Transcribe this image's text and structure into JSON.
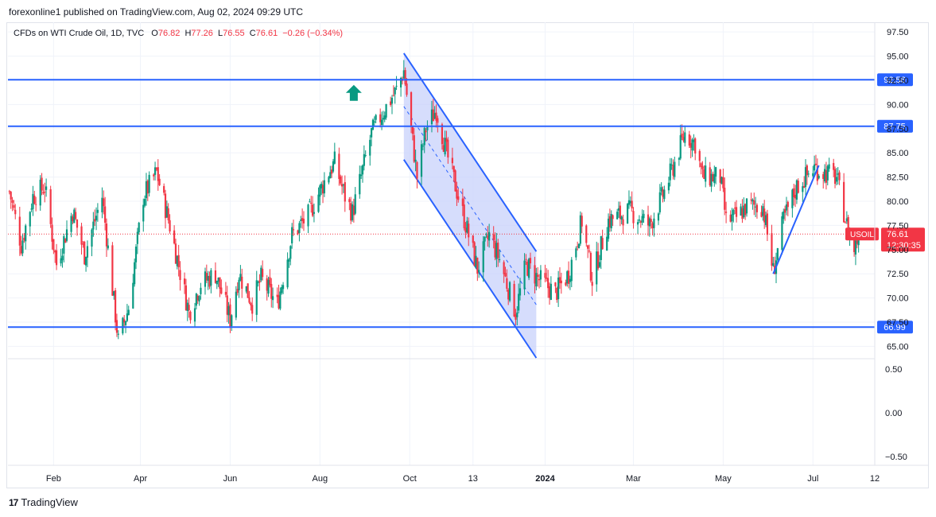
{
  "header": {
    "published_text": "forexonline1 published on TradingView.com, Aug 02, 2024 09:29 UTC"
  },
  "legend": {
    "symbol": "CFDs on WTI Crude Oil, 1D, TVC",
    "open_label": "O",
    "open": "76.82",
    "high_label": "H",
    "high": "77.26",
    "low_label": "L",
    "low": "76.55",
    "close_label": "C",
    "close": "76.61",
    "change": "−0.26 (−0.34%)"
  },
  "footer": {
    "brand": "TradingView",
    "logo_glyph": "17"
  },
  "colors": {
    "up": "#089981",
    "down": "#f23645",
    "level_line": "#2962ff",
    "channel_fill": "#c8d2fb",
    "price_badge": "#f23645",
    "arrow": "#089981"
  },
  "chart_data": {
    "type": "candlestick",
    "symbol": "USOIL",
    "timeframe": "1D",
    "ylim": [
      63.8,
      98.5
    ],
    "y_ticks": [
      "97.50",
      "95.00",
      "92.50",
      "90.00",
      "87.50",
      "85.00",
      "82.50",
      "80.00",
      "77.50",
      "75.00",
      "72.50",
      "70.00",
      "67.50",
      "65.00"
    ],
    "x_ticks": [
      "Feb",
      "Apr",
      "Jun",
      "Aug",
      "Oct",
      "13",
      "2024",
      "Mar",
      "May",
      "Jul",
      "12"
    ],
    "x_tick_bold": "2024",
    "horizontal_levels": [
      {
        "value": 92.56,
        "label": "92.56"
      },
      {
        "value": 87.75,
        "label": "87.75"
      },
      {
        "value": 66.99,
        "label": "66.99"
      }
    ],
    "current_price": {
      "symbol_label": "USOIL",
      "value": "76.61",
      "countdown": "12:30:35"
    },
    "price_path": [
      [
        "Jan 02 2023",
        81.0
      ],
      [
        "Jan 10 2023",
        75.5
      ],
      [
        "Jan 18 2023",
        80.5
      ],
      [
        "Jan 26 2023",
        81.5
      ],
      [
        "Feb 03 2023",
        73.5
      ],
      [
        "Feb 14 2023",
        79.0
      ],
      [
        "Feb 22 2023",
        74.5
      ],
      [
        "Mar 06 2023",
        80.5
      ],
      [
        "Mar 17 2023",
        65.5
      ],
      [
        "Mar 24 2023",
        69.0
      ],
      [
        "Apr 03 2023",
        80.5
      ],
      [
        "Apr 12 2023",
        83.0
      ],
      [
        "Apr 21 2023",
        77.5
      ],
      [
        "May 04 2023",
        68.5
      ],
      [
        "May 12 2023",
        71.5
      ],
      [
        "May 22 2023",
        72.5
      ],
      [
        "Jun 01 2023",
        67.8
      ],
      [
        "Jun 07 2023",
        72.5
      ],
      [
        "Jun 16 2023",
        69.5
      ],
      [
        "Jun 22 2023",
        72.0
      ],
      [
        "Jul 03 2023",
        69.3
      ],
      [
        "Jul 13 2023",
        76.5
      ],
      [
        "Jul 24 2023",
        78.5
      ],
      [
        "Aug 07 2023",
        83.0
      ],
      [
        "Aug 11 2023",
        84.0
      ],
      [
        "Aug 18 2023",
        80.5
      ],
      [
        "Aug 23 2023",
        78.8
      ],
      [
        "Sep 05 2023",
        87.0
      ],
      [
        "Sep 14 2023",
        89.5
      ],
      [
        "Sep 22 2023",
        91.5
      ],
      [
        "Sep 27 2023",
        93.5
      ],
      [
        "Oct 06 2023",
        82.5
      ],
      [
        "Oct 12 2023",
        87.5
      ],
      [
        "Oct 19 2023",
        89.5
      ],
      [
        "Oct 26 2023",
        85.0
      ],
      [
        "Nov 03 2023",
        80.5
      ],
      [
        "Nov 16 2023",
        73.0
      ],
      [
        "Nov 24 2023",
        76.5
      ],
      [
        "Dec 01 2023",
        74.0
      ],
      [
        "Dec 12 2023",
        68.5
      ],
      [
        "Dec 19 2023",
        73.5
      ],
      [
        "Dec 27 2023",
        72.0
      ],
      [
        "Jan 08 2024",
        70.5
      ],
      [
        "Jan 17 2024",
        72.5
      ],
      [
        "Jan 26 2024",
        78.0
      ],
      [
        "Feb 02 2024",
        72.0
      ],
      [
        "Feb 13 2024",
        78.0
      ],
      [
        "Feb 28 2024",
        79.0
      ],
      [
        "Mar 12 2024",
        77.5
      ],
      [
        "Mar 22 2024",
        81.0
      ],
      [
        "Apr 05 2024",
        87.0
      ],
      [
        "Apr 12 2024",
        86.0
      ],
      [
        "Apr 17 2024",
        82.5
      ],
      [
        "Apr 29 2024",
        82.5
      ],
      [
        "May 03 2024",
        78.0
      ],
      [
        "May 10 2024",
        78.3
      ],
      [
        "May 17 2024",
        79.5
      ],
      [
        "May 28 2024",
        79.5
      ],
      [
        "Jun 04 2024",
        72.7
      ],
      [
        "Jun 11 2024",
        78.0
      ],
      [
        "Jun 20 2024",
        81.5
      ],
      [
        "Jul 02 2024",
        83.5
      ],
      [
        "Jul 05 2024",
        83.2
      ],
      [
        "Jul 17 2024",
        82.5
      ],
      [
        "Jul 24 2024",
        77.5
      ],
      [
        "Jul 29 2024",
        75.0
      ],
      [
        "Aug 01 2024",
        76.6
      ]
    ],
    "channel": {
      "upper": [
        [
          "Sep 27 2023",
          95.3
        ],
        [
          "Dec 26 2023",
          74.8
        ]
      ],
      "lower": [
        [
          "Sep 27 2023",
          84.3
        ],
        [
          "Dec 26 2023",
          63.8
        ]
      ],
      "mid": [
        [
          "Sep 27 2023",
          89.8
        ],
        [
          "Dec 26 2023",
          69.3
        ]
      ],
      "fill_right": "Dec 26 2023"
    },
    "trend_line": [
      [
        "Jun 04 2024",
        72.5
      ],
      [
        "Jul 05 2024",
        83.7
      ]
    ],
    "arrow_up": {
      "date": "Aug 24 2023",
      "value": 91.2
    }
  }
}
